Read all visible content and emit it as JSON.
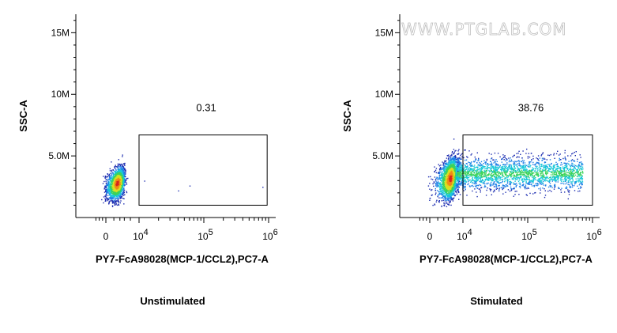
{
  "watermark": "WWW.PTGLAB.COM",
  "colors": {
    "axis": "#000000",
    "gate": "#000000",
    "density_scale": [
      "#1c2cb0",
      "#1f7fe6",
      "#18c7d8",
      "#3cd35a",
      "#d8e020",
      "#f08a18",
      "#d8241c"
    ]
  },
  "chart_data": [
    {
      "type": "scatter",
      "subtype": "flow-cytometry-density-dot-plot",
      "title": "",
      "caption": "Unstimulated",
      "xlabel": "PY7-FcA98028(MCP-1/CCL2),PC7-A",
      "ylabel": "SSC-A",
      "x_scale": "biexponential",
      "x_ticks": [
        {
          "value": 0,
          "base": "0",
          "exp": ""
        },
        {
          "value": 10000,
          "base": "10",
          "exp": "4"
        },
        {
          "value": 100000,
          "base": "10",
          "exp": "5"
        },
        {
          "value": 1000000,
          "base": "10",
          "exp": "6"
        }
      ],
      "y_ticks": [
        "5.0M",
        "10M",
        "15M"
      ],
      "y_tick_values": [
        5000000,
        10000000,
        15000000
      ],
      "ylim": [
        0,
        16500000
      ],
      "gate": {
        "label": "0.31",
        "x_range": [
          10000,
          950000
        ],
        "y_range": [
          1000000,
          6700000
        ]
      },
      "populations": [
        {
          "name": "",
          "x_center": 1500,
          "x_spread": 1200,
          "y_center": 2800000,
          "y_spread": 1000000,
          "count": 1900
        }
      ],
      "scattered_points": [
        {
          "x": 40000,
          "y": 2200000
        },
        {
          "x": 60000,
          "y": 2600000
        },
        {
          "x": 800000,
          "y": 2500000
        },
        {
          "x": 12000,
          "y": 3000000
        }
      ],
      "grid": false,
      "legend": "none"
    },
    {
      "type": "scatter",
      "subtype": "flow-cytometry-density-dot-plot",
      "title": "",
      "caption": "Stimulated",
      "xlabel": "PY7-FcA98028(MCP-1/CCL2),PC7-A",
      "ylabel": "SSC-A",
      "x_scale": "biexponential",
      "x_ticks": [
        {
          "value": 0,
          "base": "0",
          "exp": ""
        },
        {
          "value": 10000,
          "base": "10",
          "exp": "4"
        },
        {
          "value": 100000,
          "base": "10",
          "exp": "5"
        },
        {
          "value": 1000000,
          "base": "10",
          "exp": "6"
        }
      ],
      "y_ticks": [
        "5.0M",
        "10M",
        "15M"
      ],
      "y_tick_values": [
        5000000,
        10000000,
        15000000
      ],
      "ylim": [
        0,
        16500000
      ],
      "gate": {
        "label": "38.76",
        "x_range": [
          10000,
          1000000
        ],
        "y_range": [
          1000000,
          6700000
        ]
      },
      "populations": [
        {
          "name": "",
          "x_center": 3500,
          "x_spread": 2200,
          "y_center": 3200000,
          "y_spread": 1300000,
          "count": 2100
        },
        {
          "name": "",
          "x_center": 90000,
          "x_spread": 0,
          "y_center": 3600000,
          "y_spread": 1200000,
          "count": 2300
        }
      ],
      "scattered_points": [],
      "grid": false,
      "legend": "none"
    }
  ]
}
